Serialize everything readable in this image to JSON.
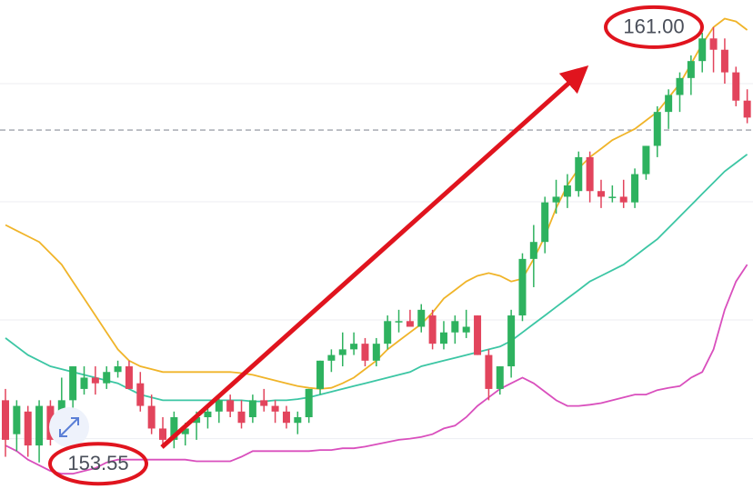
{
  "chart_data": {
    "type": "candlestick",
    "ylim": [
      152.83,
      161.48
    ],
    "gridlines": [
      160.0,
      157.91,
      155.82,
      153.72
    ],
    "price_line": 159.18,
    "up_color": "#2eb25f",
    "down_color": "#e2445c",
    "open": [
      154.4,
      153.8,
      154.2,
      153.6,
      154.3,
      153.7,
      154.4,
      154.6,
      154.8,
      154.7,
      154.9,
      155.0,
      154.7,
      154.3,
      153.9,
      153.7,
      153.8,
      154.0,
      154.1,
      154.2,
      154.4,
      154.2,
      154.1,
      154.4,
      154.3,
      154.2,
      154.0,
      154.1,
      154.6,
      155.1,
      155.2,
      155.3,
      155.4,
      155.1,
      155.4,
      155.8,
      155.8,
      155.7,
      155.9,
      155.4,
      155.6,
      155.6,
      155.9,
      155.2,
      154.6,
      155.0,
      155.9,
      156.9,
      157.2,
      157.9,
      158.0,
      158.1,
      158.7,
      158.1,
      158.0,
      158.0,
      157.9,
      158.4,
      158.9,
      159.5,
      159.8,
      160.1,
      160.4,
      160.8,
      160.6,
      160.2,
      159.7
    ],
    "high": [
      154.6,
      154.4,
      154.3,
      154.4,
      154.4,
      154.8,
      155.0,
      155.0,
      155.0,
      155.0,
      155.1,
      155.1,
      154.9,
      154.5,
      154.1,
      154.2,
      154.0,
      154.2,
      154.3,
      154.5,
      154.5,
      154.4,
      154.5,
      154.6,
      154.4,
      154.3,
      154.2,
      154.6,
      155.1,
      155.3,
      155.6,
      155.6,
      155.5,
      155.5,
      155.9,
      156.0,
      156.0,
      156.1,
      156.0,
      155.8,
      155.9,
      156.0,
      155.9,
      155.3,
      155.0,
      156.0,
      157.0,
      157.5,
      158.0,
      158.3,
      158.4,
      158.8,
      158.8,
      158.3,
      158.2,
      158.3,
      158.5,
      158.9,
      159.6,
      159.9,
      160.2,
      160.5,
      160.9,
      161.0,
      160.8,
      160.3,
      159.9
    ],
    "low": [
      153.4,
      153.5,
      153.4,
      153.3,
      153.6,
      153.6,
      154.2,
      154.5,
      154.5,
      154.6,
      154.8,
      154.6,
      154.2,
      153.8,
      153.6,
      153.55,
      153.6,
      153.7,
      153.9,
      154.0,
      154.1,
      153.9,
      154.0,
      154.2,
      154.0,
      153.9,
      153.8,
      154.0,
      154.5,
      154.9,
      155.0,
      155.2,
      155.0,
      155.0,
      155.3,
      155.6,
      155.7,
      155.6,
      155.3,
      155.3,
      155.4,
      155.5,
      155.2,
      154.4,
      154.5,
      154.8,
      155.8,
      156.4,
      157.0,
      157.7,
      157.8,
      158.0,
      157.9,
      157.8,
      157.9,
      157.8,
      157.8,
      158.3,
      158.7,
      159.2,
      159.5,
      159.8,
      160.2,
      160.2,
      160.0,
      159.6,
      159.3
    ],
    "close": [
      153.7,
      154.3,
      153.6,
      154.3,
      153.7,
      154.4,
      155.0,
      154.8,
      154.7,
      154.9,
      155.0,
      154.6,
      154.3,
      153.9,
      153.7,
      154.1,
      153.9,
      154.1,
      154.2,
      154.4,
      154.2,
      154.0,
      154.4,
      154.3,
      154.2,
      154.0,
      154.1,
      154.6,
      155.1,
      155.2,
      155.3,
      155.4,
      155.1,
      155.4,
      155.8,
      155.8,
      155.7,
      156.0,
      155.4,
      155.6,
      155.8,
      155.7,
      155.2,
      154.6,
      155.0,
      155.9,
      156.9,
      157.2,
      157.9,
      158.0,
      158.2,
      158.7,
      158.1,
      158.0,
      158.0,
      157.9,
      158.4,
      158.9,
      159.5,
      159.8,
      160.1,
      160.4,
      160.8,
      160.6,
      160.2,
      159.7,
      159.4
    ],
    "bands": [
      {
        "color": "#f0b429",
        "values": [
          157.5,
          157.4,
          157.3,
          157.2,
          157.0,
          156.8,
          156.5,
          156.2,
          155.9,
          155.6,
          155.3,
          155.1,
          155.0,
          154.95,
          154.9,
          154.9,
          154.9,
          154.9,
          154.9,
          154.9,
          154.9,
          154.88,
          154.85,
          154.8,
          154.75,
          154.7,
          154.65,
          154.62,
          154.6,
          154.62,
          154.7,
          154.8,
          154.95,
          155.1,
          155.3,
          155.45,
          155.6,
          155.75,
          155.95,
          156.2,
          156.35,
          156.5,
          156.6,
          156.65,
          156.6,
          156.5,
          156.55,
          156.9,
          157.3,
          157.8,
          158.2,
          158.5,
          158.7,
          158.85,
          159.0,
          159.1,
          159.2,
          159.35,
          159.5,
          159.75,
          160.0,
          160.35,
          160.7,
          161.0,
          161.15,
          161.1,
          160.95
        ]
      },
      {
        "color": "#3cc6a4",
        "values": [
          155.5,
          155.35,
          155.2,
          155.1,
          155.0,
          154.95,
          154.9,
          154.85,
          154.8,
          154.75,
          154.7,
          154.6,
          154.5,
          154.45,
          154.4,
          154.4,
          154.4,
          154.4,
          154.4,
          154.4,
          154.4,
          154.4,
          154.38,
          154.38,
          154.4,
          154.4,
          154.42,
          154.45,
          154.5,
          154.55,
          154.6,
          154.65,
          154.7,
          154.75,
          154.8,
          154.85,
          154.9,
          155.0,
          155.05,
          155.1,
          155.15,
          155.2,
          155.25,
          155.3,
          155.35,
          155.45,
          155.6,
          155.75,
          155.9,
          156.05,
          156.2,
          156.35,
          156.5,
          156.6,
          156.7,
          156.8,
          156.95,
          157.1,
          157.25,
          157.45,
          157.65,
          157.85,
          158.05,
          158.25,
          158.45,
          158.6,
          158.75
        ]
      },
      {
        "color": "#d94fbd",
        "values": [
          153.6,
          153.5,
          153.35,
          153.25,
          153.15,
          153.1,
          153.1,
          153.15,
          153.2,
          153.3,
          153.35,
          153.35,
          153.35,
          153.35,
          153.35,
          153.35,
          153.35,
          153.32,
          153.32,
          153.32,
          153.32,
          153.4,
          153.5,
          153.5,
          153.5,
          153.5,
          153.5,
          153.5,
          153.52,
          153.52,
          153.55,
          153.55,
          153.58,
          153.62,
          153.66,
          153.7,
          153.72,
          153.75,
          153.8,
          153.9,
          153.95,
          154.1,
          154.3,
          154.45,
          154.6,
          154.7,
          154.8,
          154.7,
          154.55,
          154.4,
          154.3,
          154.3,
          154.32,
          154.35,
          154.4,
          154.45,
          154.5,
          154.5,
          154.58,
          154.62,
          154.65,
          154.8,
          154.9,
          155.3,
          156.0,
          156.5,
          156.8
        ]
      }
    ],
    "annotations": [
      {
        "value": 161.0,
        "label": "161.00"
      },
      {
        "value": 153.55,
        "label": "153.55"
      }
    ]
  }
}
